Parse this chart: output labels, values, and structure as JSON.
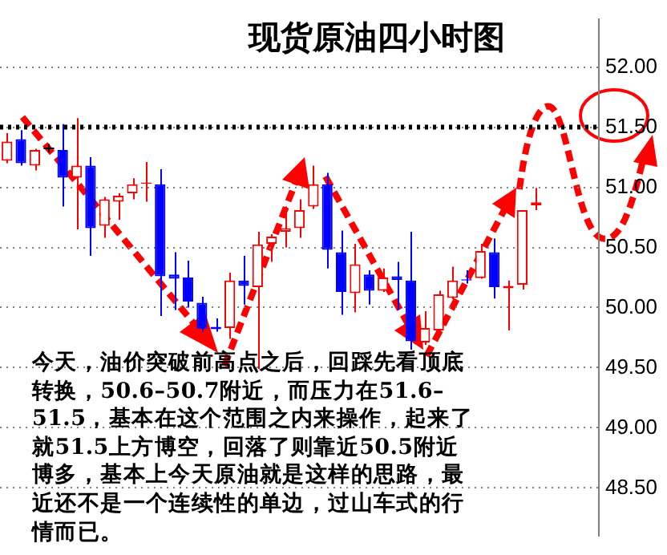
{
  "chart_data": {
    "type": "candlestick",
    "title": "现货原油四小时图",
    "categories": [
      null,
      null,
      null,
      null,
      null,
      null,
      null,
      null,
      null,
      null,
      null,
      null,
      null,
      null,
      null,
      null,
      null,
      null,
      null,
      null,
      null,
      null,
      null,
      null,
      null,
      null,
      null,
      null,
      null,
      null,
      null,
      null,
      null,
      null,
      null,
      null,
      null,
      null,
      null,
      null,
      null,
      null,
      null
    ],
    "ohlc": [
      [
        51.22,
        51.45,
        51.2,
        51.38
      ],
      [
        51.4,
        51.475,
        51.18,
        51.2
      ],
      [
        51.18,
        51.32,
        51.14,
        51.31
      ],
      [
        51.33,
        51.36,
        51.29,
        51.33
      ],
      [
        51.31,
        51.525,
        50.84,
        51.08
      ],
      [
        51.08,
        51.575,
        50.65,
        51.18
      ],
      [
        51.18,
        51.25,
        50.43,
        50.66
      ],
      [
        50.68,
        50.92,
        50.58,
        50.9
      ],
      [
        50.88,
        50.95,
        50.73,
        50.93
      ],
      [
        50.95,
        51.075,
        50.9,
        51.025
      ],
      [
        51.03,
        51.21,
        50.88,
        51.04
      ],
      [
        51.025,
        51.15,
        49.93,
        50.26
      ],
      [
        50.275,
        50.46,
        49.98,
        50.24
      ],
      [
        50.25,
        50.39,
        50.0,
        50.05
      ],
      [
        50.04,
        50.09,
        49.8,
        49.825
      ],
      [
        49.84,
        49.91,
        49.8,
        49.82
      ],
      [
        49.83,
        50.29,
        49.74,
        50.225
      ],
      [
        50.225,
        50.43,
        50.025,
        50.18
      ],
      [
        50.17,
        50.63,
        49.49,
        50.525
      ],
      [
        50.53,
        50.61,
        50.38,
        50.59
      ],
      [
        50.63,
        50.84,
        50.5,
        50.66
      ],
      [
        50.66,
        50.9,
        50.58,
        50.81
      ],
      [
        50.84,
        51.18,
        50.82,
        51.025
      ],
      [
        51.025,
        51.12,
        50.325,
        50.48
      ],
      [
        50.46,
        50.64,
        49.94,
        50.13
      ],
      [
        50.12,
        50.53,
        49.96,
        50.36
      ],
      [
        50.275,
        50.31,
        50.025,
        50.14
      ],
      [
        50.14,
        50.325,
        50.13,
        50.25
      ],
      [
        50.26,
        50.38,
        49.98,
        50.23
      ],
      [
        50.225,
        50.63,
        49.65,
        49.72
      ],
      [
        49.71,
        49.97,
        49.69,
        49.83
      ],
      [
        49.81,
        50.14,
        49.8,
        50.11
      ],
      [
        50.08,
        50.34,
        50.07,
        50.225
      ],
      [
        50.235,
        50.31,
        50.2,
        50.225
      ],
      [
        50.245,
        50.53,
        50.24,
        50.47
      ],
      [
        50.46,
        50.575,
        50.075,
        50.17
      ],
      [
        50.16,
        50.225,
        49.81,
        50.18
      ],
      [
        50.19,
        50.81,
        50.15,
        50.81
      ],
      [
        50.85,
        50.995,
        50.81,
        50.875
      ],
      null,
      null,
      null,
      null
    ],
    "colors": [
      "#ff0000",
      "#0000ff",
      "#ff0000",
      "#000000",
      "#0000ff",
      "#ff0000",
      "#0000ff",
      "#ff0000",
      "#ff0000",
      "#ff0000",
      "#ff0000",
      "#0000ff",
      "#0000ff",
      "#0000ff",
      "#0000ff",
      "#0000ff",
      "#ff0000",
      "#0000ff",
      "#ff0000",
      "#ff0000",
      "#ff0000",
      "#ff0000",
      "#ff0000",
      "#0000ff",
      "#0000ff",
      "#ff0000",
      "#0000ff",
      "#ff0000",
      "#0000ff",
      "#0000ff",
      "#ff0000",
      "#ff0000",
      "#ff0000",
      "#0000ff",
      "#ff0000",
      "#0000ff",
      "#ff0000",
      "#ff0000",
      "#ff0000",
      null,
      null,
      null,
      null
    ],
    "ylim": [
      48.1,
      52.4
    ],
    "yticks": [
      {
        "value": 48.5,
        "label": "48.50"
      },
      {
        "value": 49,
        "label": "49.00"
      },
      {
        "value": 49.5,
        "label": "49.50"
      },
      {
        "value": 50,
        "label": "50.00"
      },
      {
        "value": 50.5,
        "label": "50.50"
      },
      {
        "value": 51,
        "label": "51.00"
      },
      {
        "value": 51.5,
        "label": "51.50"
      },
      {
        "value": 52,
        "label": "52.00"
      }
    ],
    "grid": "y",
    "tick_labels": "y",
    "ref_lines": [
      {
        "axis": "y",
        "value": 51.5,
        "color": "#000000",
        "line_style": "dotted"
      }
    ],
    "annotations": [
      "今天，油价突破前高点之后，回踩先看顶底转换，50.6–50.7附近，而压力在51.6–51.5，基本在这个范围之内来操作，起来了就51.5上方博空，回落了则靠近50.5附近博多，基本上今天原油就是这样的思路，最近还不是一个连续性的单边，过山车式的行情而已。"
    ]
  }
}
